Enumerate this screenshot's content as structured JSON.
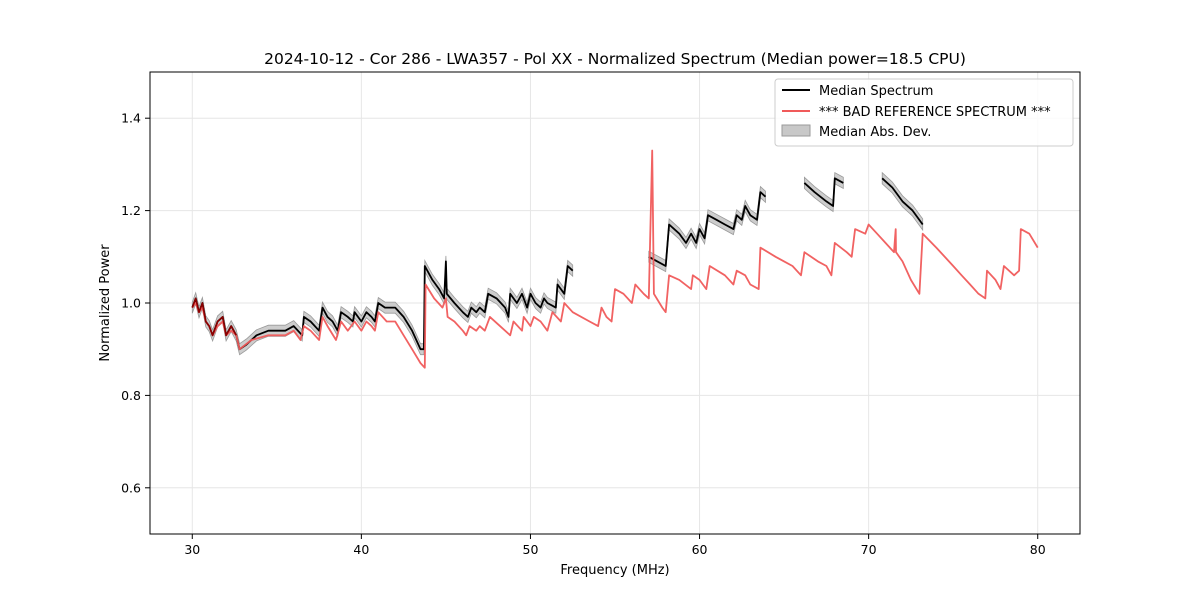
{
  "chart_data": {
    "type": "line",
    "title": "2024-10-12 - Cor 286 - LWA357 - Pol XX - Normalized Spectrum (Median power=18.5 CPU)",
    "xlabel": "Frequency (MHz)",
    "ylabel": "Normalized Power",
    "xlim": [
      27.5,
      82.5
    ],
    "ylim": [
      0.5,
      1.5
    ],
    "xticks": [
      30,
      40,
      50,
      60,
      70,
      80
    ],
    "yticks": [
      0.6,
      0.8,
      1.0,
      1.2,
      1.4
    ],
    "xtick_labels": [
      "30",
      "40",
      "50",
      "60",
      "70",
      "80"
    ],
    "ytick_labels": [
      "0.6",
      "0.8",
      "1.0",
      "1.2",
      "1.4"
    ],
    "grid": true,
    "legend_position": "top-right",
    "legend": [
      "Median Spectrum",
      "*** BAD REFERENCE SPECTRUM ***",
      "Median Abs. Dev."
    ],
    "colors": {
      "median": "#000000",
      "bad_reference": "#f05a5a",
      "mad_band": "#c8c8c8",
      "mad_edge": "#9a9a9a"
    },
    "series": [
      {
        "name": "Median Spectrum",
        "mad": 0.012,
        "segments": [
          [
            [
              30.0,
              0.99
            ],
            [
              30.2,
              1.01
            ],
            [
              30.4,
              0.98
            ],
            [
              30.6,
              1.0
            ],
            [
              30.8,
              0.96
            ],
            [
              31.0,
              0.95
            ],
            [
              31.2,
              0.93
            ],
            [
              31.5,
              0.96
            ],
            [
              31.8,
              0.97
            ],
            [
              32.0,
              0.93
            ],
            [
              32.3,
              0.95
            ],
            [
              32.6,
              0.93
            ],
            [
              32.8,
              0.9
            ],
            [
              33.2,
              0.91
            ],
            [
              33.8,
              0.93
            ],
            [
              34.5,
              0.94
            ],
            [
              35.5,
              0.94
            ],
            [
              36.0,
              0.95
            ],
            [
              36.5,
              0.93
            ],
            [
              36.6,
              0.97
            ],
            [
              37.0,
              0.96
            ],
            [
              37.5,
              0.94
            ],
            [
              37.7,
              0.99
            ],
            [
              38.0,
              0.97
            ],
            [
              38.3,
              0.96
            ],
            [
              38.6,
              0.94
            ],
            [
              38.8,
              0.98
            ],
            [
              39.2,
              0.97
            ],
            [
              39.5,
              0.96
            ],
            [
              39.6,
              0.98
            ],
            [
              40.0,
              0.96
            ],
            [
              40.3,
              0.98
            ],
            [
              40.6,
              0.97
            ],
            [
              40.8,
              0.96
            ],
            [
              41.0,
              1.0
            ],
            [
              41.4,
              0.99
            ],
            [
              41.7,
              0.99
            ],
            [
              42.0,
              0.99
            ],
            [
              42.5,
              0.97
            ],
            [
              43.0,
              0.94
            ],
            [
              43.5,
              0.9
            ],
            [
              43.7,
              0.9
            ],
            [
              43.75,
              1.08
            ],
            [
              44.2,
              1.05
            ],
            [
              44.6,
              1.03
            ],
            [
              44.9,
              1.01
            ],
            [
              45.0,
              1.09
            ],
            [
              45.05,
              1.02
            ],
            [
              45.5,
              1.0
            ],
            [
              46.0,
              0.98
            ],
            [
              46.3,
              0.97
            ],
            [
              46.5,
              0.99
            ],
            [
              46.8,
              0.98
            ],
            [
              47.0,
              0.99
            ],
            [
              47.3,
              0.98
            ],
            [
              47.5,
              1.02
            ],
            [
              48.0,
              1.01
            ],
            [
              48.5,
              0.99
            ],
            [
              48.7,
              0.97
            ],
            [
              48.8,
              1.02
            ],
            [
              49.2,
              1.0
            ],
            [
              49.5,
              1.02
            ],
            [
              49.8,
              0.99
            ],
            [
              50.0,
              1.02
            ],
            [
              50.3,
              1.0
            ],
            [
              50.6,
              0.99
            ],
            [
              50.8,
              1.01
            ],
            [
              51.0,
              1.0
            ],
            [
              51.5,
              0.99
            ],
            [
              51.6,
              1.04
            ],
            [
              52.0,
              1.02
            ],
            [
              52.2,
              1.08
            ],
            [
              52.5,
              1.07
            ]
          ],
          [
            [
              57.0,
              1.1
            ],
            [
              57.5,
              1.09
            ],
            [
              58.0,
              1.08
            ],
            [
              58.2,
              1.17
            ],
            [
              58.8,
              1.15
            ],
            [
              59.2,
              1.13
            ],
            [
              59.5,
              1.15
            ],
            [
              59.8,
              1.13
            ],
            [
              60.0,
              1.16
            ],
            [
              60.3,
              1.14
            ],
            [
              60.5,
              1.19
            ],
            [
              61.0,
              1.18
            ],
            [
              61.5,
              1.17
            ],
            [
              62.0,
              1.16
            ],
            [
              62.2,
              1.19
            ],
            [
              62.5,
              1.18
            ],
            [
              62.7,
              1.21
            ],
            [
              63.0,
              1.19
            ],
            [
              63.4,
              1.18
            ],
            [
              63.6,
              1.24
            ],
            [
              63.9,
              1.23
            ]
          ],
          [
            [
              66.2,
              1.26
            ],
            [
              66.8,
              1.24
            ],
            [
              67.5,
              1.22
            ],
            [
              67.9,
              1.21
            ],
            [
              68.0,
              1.27
            ],
            [
              68.5,
              1.26
            ]
          ],
          [
            [
              70.8,
              1.27
            ],
            [
              71.4,
              1.25
            ],
            [
              72.0,
              1.22
            ],
            [
              72.6,
              1.2
            ],
            [
              73.2,
              1.17
            ]
          ]
        ]
      },
      {
        "name": "*** BAD REFERENCE SPECTRUM ***",
        "segments": [
          [
            [
              30.0,
              0.99
            ],
            [
              30.2,
              1.0
            ],
            [
              30.4,
              0.98
            ],
            [
              30.6,
              0.99
            ],
            [
              30.8,
              0.96
            ],
            [
              31.0,
              0.95
            ],
            [
              31.2,
              0.93
            ],
            [
              31.5,
              0.95
            ],
            [
              31.8,
              0.96
            ],
            [
              32.0,
              0.93
            ],
            [
              32.3,
              0.94
            ],
            [
              32.6,
              0.93
            ],
            [
              32.8,
              0.9
            ],
            [
              33.5,
              0.92
            ],
            [
              34.5,
              0.93
            ],
            [
              35.5,
              0.93
            ],
            [
              36.0,
              0.94
            ],
            [
              36.4,
              0.92
            ],
            [
              36.6,
              0.95
            ],
            [
              37.0,
              0.94
            ],
            [
              37.5,
              0.92
            ],
            [
              37.7,
              0.97
            ],
            [
              38.0,
              0.95
            ],
            [
              38.5,
              0.92
            ],
            [
              38.8,
              0.96
            ],
            [
              39.2,
              0.94
            ],
            [
              39.6,
              0.96
            ],
            [
              40.0,
              0.94
            ],
            [
              40.3,
              0.96
            ],
            [
              40.6,
              0.95
            ],
            [
              40.8,
              0.94
            ],
            [
              41.0,
              0.98
            ],
            [
              41.5,
              0.96
            ],
            [
              42.0,
              0.96
            ],
            [
              42.5,
              0.93
            ],
            [
              43.0,
              0.9
            ],
            [
              43.5,
              0.87
            ],
            [
              43.75,
              0.86
            ],
            [
              43.8,
              1.04
            ],
            [
              44.3,
              1.01
            ],
            [
              44.8,
              0.99
            ],
            [
              45.0,
              1.01
            ],
            [
              45.1,
              0.97
            ],
            [
              45.5,
              0.96
            ],
            [
              46.0,
              0.94
            ],
            [
              46.2,
              0.93
            ],
            [
              46.4,
              0.95
            ],
            [
              46.8,
              0.94
            ],
            [
              47.0,
              0.95
            ],
            [
              47.3,
              0.94
            ],
            [
              47.6,
              0.97
            ],
            [
              48.2,
              0.95
            ],
            [
              48.8,
              0.93
            ],
            [
              49.0,
              0.96
            ],
            [
              49.5,
              0.94
            ],
            [
              49.6,
              0.97
            ],
            [
              50.0,
              0.95
            ],
            [
              50.2,
              0.97
            ],
            [
              50.6,
              0.96
            ],
            [
              51.0,
              0.94
            ],
            [
              51.3,
              0.98
            ],
            [
              51.8,
              0.96
            ],
            [
              52.0,
              1.0
            ],
            [
              52.5,
              0.98
            ],
            [
              53.5,
              0.96
            ],
            [
              54.0,
              0.95
            ],
            [
              54.2,
              0.99
            ],
            [
              54.5,
              0.97
            ],
            [
              54.8,
              0.96
            ],
            [
              55.0,
              1.03
            ],
            [
              55.5,
              1.02
            ],
            [
              56.0,
              1.0
            ],
            [
              56.2,
              1.04
            ],
            [
              56.7,
              1.02
            ],
            [
              57.0,
              1.01
            ],
            [
              57.2,
              1.33
            ],
            [
              57.3,
              1.02
            ],
            [
              57.8,
              0.99
            ],
            [
              58.0,
              0.98
            ],
            [
              58.2,
              1.06
            ],
            [
              58.8,
              1.05
            ],
            [
              59.5,
              1.03
            ],
            [
              59.6,
              1.06
            ],
            [
              60.0,
              1.05
            ],
            [
              60.4,
              1.03
            ],
            [
              60.6,
              1.08
            ],
            [
              61.5,
              1.06
            ],
            [
              62.0,
              1.04
            ],
            [
              62.2,
              1.07
            ],
            [
              62.7,
              1.06
            ],
            [
              63.0,
              1.04
            ],
            [
              63.5,
              1.03
            ],
            [
              63.6,
              1.12
            ],
            [
              64.5,
              1.1
            ],
            [
              65.0,
              1.09
            ],
            [
              65.5,
              1.08
            ],
            [
              66.0,
              1.06
            ],
            [
              66.2,
              1.11
            ],
            [
              67.0,
              1.09
            ],
            [
              67.5,
              1.08
            ],
            [
              67.8,
              1.06
            ],
            [
              68.0,
              1.13
            ],
            [
              68.7,
              1.11
            ],
            [
              69.0,
              1.1
            ],
            [
              69.2,
              1.16
            ],
            [
              69.8,
              1.15
            ],
            [
              70.0,
              1.17
            ],
            [
              70.5,
              1.15
            ],
            [
              71.0,
              1.13
            ],
            [
              71.5,
              1.11
            ],
            [
              71.6,
              1.16
            ],
            [
              71.62,
              1.11
            ],
            [
              72.0,
              1.09
            ],
            [
              72.5,
              1.05
            ],
            [
              73.0,
              1.02
            ],
            [
              73.2,
              1.15
            ],
            [
              74.0,
              1.12
            ],
            [
              75.0,
              1.08
            ],
            [
              75.5,
              1.06
            ],
            [
              76.0,
              1.04
            ],
            [
              76.5,
              1.02
            ],
            [
              76.9,
              1.01
            ],
            [
              77.0,
              1.07
            ],
            [
              77.5,
              1.05
            ],
            [
              77.8,
              1.03
            ],
            [
              78.0,
              1.08
            ],
            [
              78.6,
              1.06
            ],
            [
              78.9,
              1.07
            ],
            [
              79.0,
              1.16
            ],
            [
              79.5,
              1.15
            ],
            [
              80.0,
              1.12
            ]
          ]
        ]
      }
    ]
  }
}
